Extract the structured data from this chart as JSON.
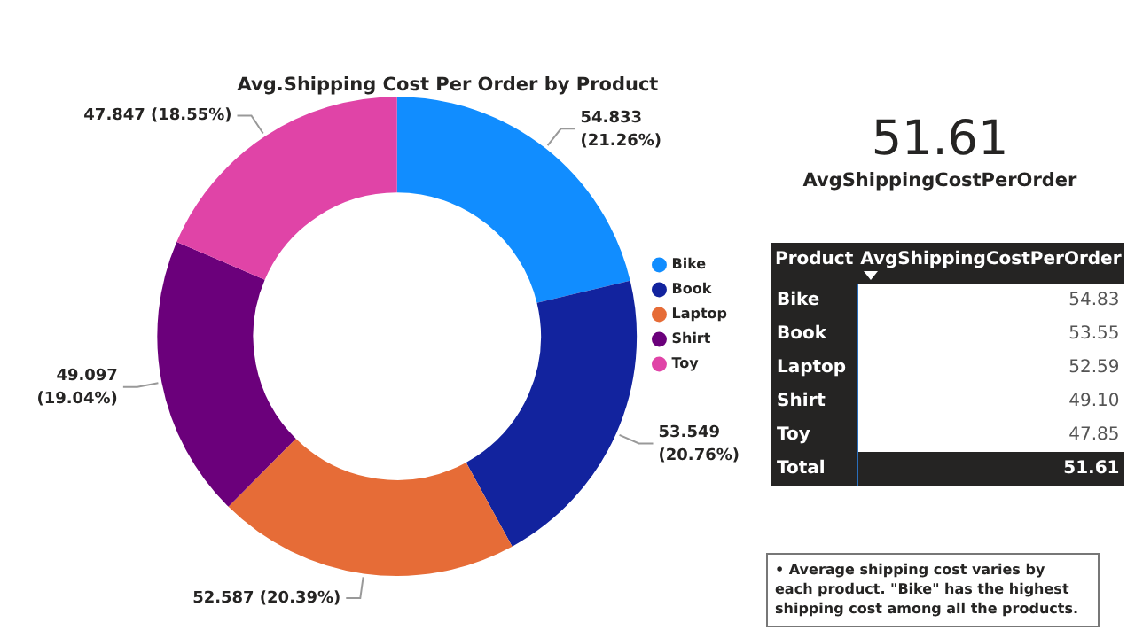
{
  "chart_data": [
    {
      "type": "donut",
      "title": "Avg.Shipping Cost Per Order by Product",
      "categories": [
        "Bike",
        "Book",
        "Laptop",
        "Shirt",
        "Toy"
      ],
      "values": [
        54.833,
        53.549,
        52.587,
        49.097,
        47.847
      ],
      "colors": [
        "#118dff",
        "#12239e",
        "#e66c37",
        "#6b007b",
        "#e044a7"
      ],
      "value_labels": [
        "54.833 (21.26%)",
        "53.549 (20.76%)",
        "52.587 (20.39%)",
        "49.097 (19.04%)",
        "47.847 (18.55%)"
      ],
      "legend": "right"
    },
    {
      "type": "other",
      "title": "51.61",
      "subtitle": "AvgShippingCostPerOrder"
    },
    {
      "type": "other",
      "xlabel": "Product",
      "ylabel": "AvgShippingCostPerOrder",
      "categories": [
        "Bike",
        "Book",
        "Laptop",
        "Shirt",
        "Toy",
        "Total"
      ],
      "value_labels": [
        "54.83",
        "53.55",
        "52.59",
        "49.10",
        "47.85",
        "51.61"
      ],
      "data_labels": true,
      "annotations": [
        "• Average shipping cost varies by each product. \"Bike\" has the highest shipping cost among all the products."
      ]
    }
  ]
}
